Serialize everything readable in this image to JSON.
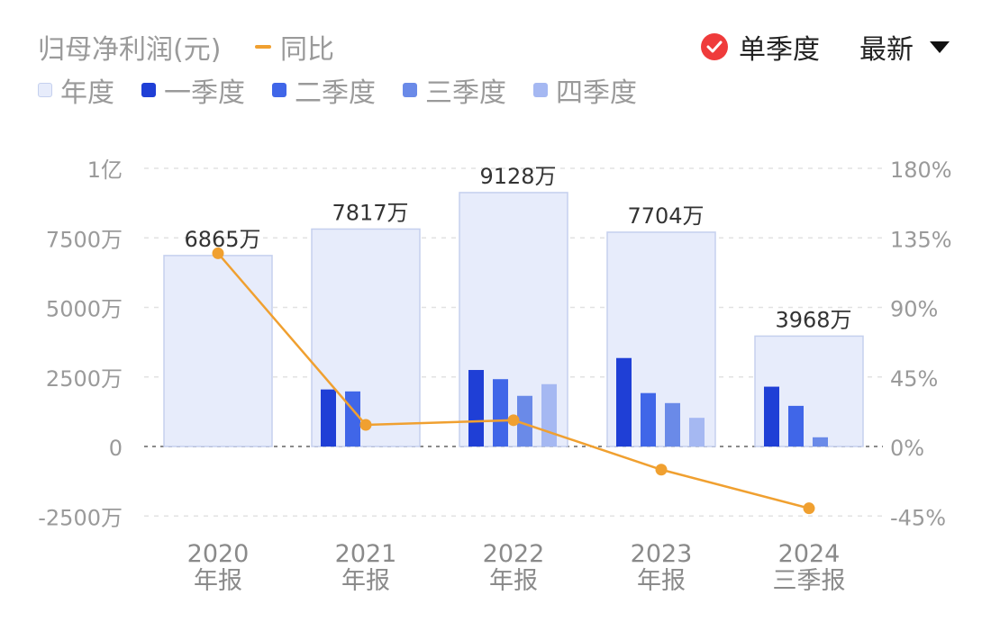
{
  "header": {
    "title": "归母净利润(元)",
    "yoy_label": "同比",
    "toggle_label": "单季度",
    "period_label": "最新"
  },
  "legend": [
    {
      "label": "年度",
      "color": "#e7ecfb",
      "border": "#c5d0ee"
    },
    {
      "label": "一季度",
      "color": "#1f3fd6"
    },
    {
      "label": "二季度",
      "color": "#4066e8"
    },
    {
      "label": "三季度",
      "color": "#6a8ae8"
    },
    {
      "label": "四季度",
      "color": "#a5b8f2"
    }
  ],
  "colors": {
    "annual": "#e7ecfb",
    "annual_border": "#c5d0ee",
    "q1": "#1f3fd6",
    "q2": "#4066e8",
    "q3": "#6a8ae8",
    "q4": "#a5b8f2",
    "yoy": "#f0a030",
    "grid": "#e2e2e2",
    "axis_text": "#9a9a9a"
  },
  "chart_data": {
    "type": "bar",
    "categories": [
      "2020\n年报",
      "2021\n年报",
      "2022\n年报",
      "2023\n年报",
      "2024\n三季报"
    ],
    "left_axis": {
      "ticks": [
        -2500,
        0,
        2500,
        5000,
        7500,
        10000
      ],
      "tick_labels": [
        "-2500万",
        "0",
        "2500万",
        "5000万",
        "7500万",
        "1亿"
      ],
      "ylim": [
        -2500,
        10000
      ],
      "unit": "万"
    },
    "right_axis": {
      "ticks": [
        -45,
        0,
        45,
        90,
        135,
        180
      ],
      "tick_labels": [
        "-45%",
        "0%",
        "45%",
        "90%",
        "135%",
        "180%"
      ],
      "ylim": [
        -45,
        180
      ],
      "unit": "%"
    },
    "series": [
      {
        "name": "年度",
        "type": "bar",
        "values": [
          6865,
          7817,
          9128,
          7704,
          3968
        ],
        "data_labels": [
          "6865万",
          "7817万",
          "9128万",
          "7704万",
          "3968万"
        ]
      },
      {
        "name": "一季度",
        "type": "bar",
        "values": [
          null,
          2050,
          2750,
          3180,
          2150
        ]
      },
      {
        "name": "二季度",
        "type": "bar",
        "values": [
          null,
          1980,
          2420,
          1920,
          1460
        ]
      },
      {
        "name": "三季度",
        "type": "bar",
        "values": [
          null,
          null,
          1820,
          1560,
          330
        ]
      },
      {
        "name": "四季度",
        "type": "bar",
        "values": [
          null,
          null,
          2240,
          1030,
          null
        ]
      },
      {
        "name": "同比",
        "type": "line",
        "axis": "right",
        "values": [
          125,
          14,
          17,
          -15,
          -40
        ]
      }
    ]
  }
}
